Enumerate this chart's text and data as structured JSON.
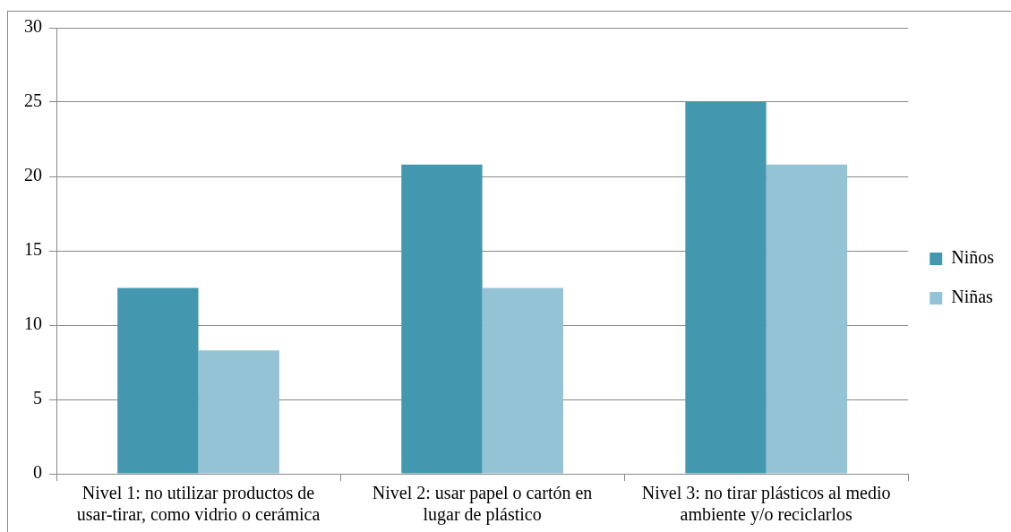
{
  "chart_data": {
    "type": "bar",
    "categories": [
      "Nivel 1: no utilizar productos de usar-tirar, como vidrio o cerámica",
      "Nivel 2: usar papel o cartón en lugar de plástico",
      "Nivel 3: no tirar plásticos al medio ambiente y/o reciclarlos"
    ],
    "series": [
      {
        "name": "Niños",
        "color": "#4398b0",
        "values": [
          12.5,
          20.8,
          25
        ]
      },
      {
        "name": "Niñas",
        "color": "#93c3d4",
        "values": [
          8.3,
          12.5,
          20.8
        ]
      }
    ],
    "ylim": [
      0,
      30
    ],
    "yticks": [
      0,
      5,
      10,
      15,
      20,
      25,
      30
    ],
    "grid": "y",
    "legend": "right"
  }
}
